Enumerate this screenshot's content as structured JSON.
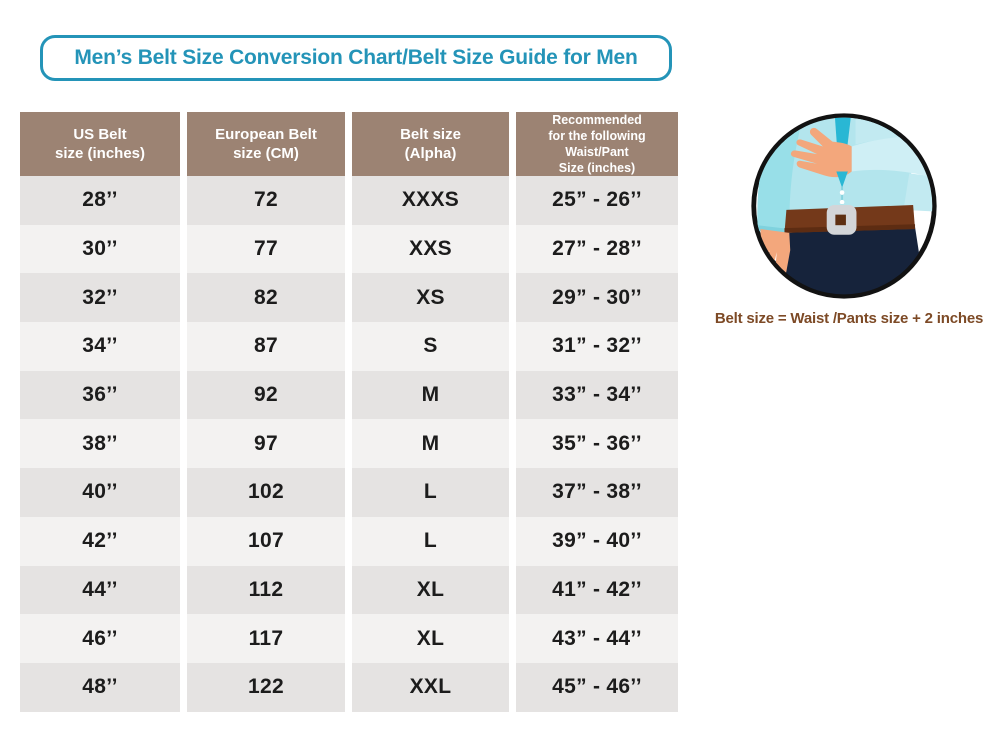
{
  "title": "Men’s Belt Size Conversion Chart/Belt Size Guide for Men",
  "colors": {
    "accent_teal": "#2494b8",
    "header_taupe": "#9c8373",
    "row_dark": "#e5e3e2",
    "row_light": "#f3f2f1",
    "caption_brown": "#7d4a26",
    "belt_brown": "#74391a",
    "pants_navy": "#16233b",
    "shirt_cyan": "#b3e5ed",
    "tie_teal": "#29b7d4",
    "skin": "#f3a77c",
    "buckle_gray": "#d3d5d8"
  },
  "table": {
    "headers": [
      {
        "lines": [
          "US Belt",
          "size (inches)"
        ]
      },
      {
        "lines": [
          "European Belt",
          "size (CM)"
        ]
      },
      {
        "lines": [
          "Belt size",
          "(Alpha)"
        ]
      },
      {
        "lines": [
          "Recommended",
          "for the following",
          "Waist/Pant",
          "Size (inches)"
        ]
      }
    ],
    "rows": [
      [
        "28’’",
        "72",
        "XXXS",
        "25” - 26’’"
      ],
      [
        "30’’",
        "77",
        "XXS",
        "27” - 28’’"
      ],
      [
        "32’’",
        "82",
        "XS",
        "29” - 30’’"
      ],
      [
        "34’’",
        "87",
        "S",
        "31” - 32’’"
      ],
      [
        "36’’",
        "92",
        "M",
        "33” - 34’’"
      ],
      [
        "38’’",
        "97",
        "M",
        "35” - 36’’"
      ],
      [
        "40’’",
        "102",
        "L",
        "37” - 38’’"
      ],
      [
        "42’’",
        "107",
        "L",
        "39” - 40’’"
      ],
      [
        "44’’",
        "112",
        "XL",
        "41” - 42’’"
      ],
      [
        "46’’",
        "117",
        "XL",
        "43” - 44’’"
      ],
      [
        "48’’",
        "122",
        "XXL",
        "45” - 46’’"
      ]
    ]
  },
  "illustration": {
    "icon": "man-wearing-belt-icon",
    "caption": "Belt size = Waist /Pants size + 2 inches"
  },
  "chart_data": {
    "type": "table",
    "title": "Men’s Belt Size Conversion Chart/Belt Size Guide for Men",
    "columns": [
      "US Belt size (inches)",
      "European Belt size (CM)",
      "Belt size (Alpha)",
      "Recommended for the following Waist/Pant Size (inches)"
    ],
    "rows": [
      [
        "28’’",
        72,
        "XXXS",
        "25” - 26’’"
      ],
      [
        "30’’",
        77,
        "XXS",
        "27” - 28’’"
      ],
      [
        "32’’",
        82,
        "XS",
        "29” - 30’’"
      ],
      [
        "34’’",
        87,
        "S",
        "31” - 32’’"
      ],
      [
        "36’’",
        92,
        "M",
        "33” - 34’’"
      ],
      [
        "38’’",
        97,
        "M",
        "35” - 36’’"
      ],
      [
        "40’’",
        102,
        "L",
        "37” - 38’’"
      ],
      [
        "42’’",
        107,
        "L",
        "39” - 40’’"
      ],
      [
        "44’’",
        112,
        "XL",
        "41” - 42’’"
      ],
      [
        "46’’",
        117,
        "XL",
        "43” - 44’’"
      ],
      [
        "48’’",
        122,
        "XXL",
        "45” - 46’’"
      ]
    ],
    "annotation": "Belt size = Waist /Pants size + 2 inches"
  }
}
